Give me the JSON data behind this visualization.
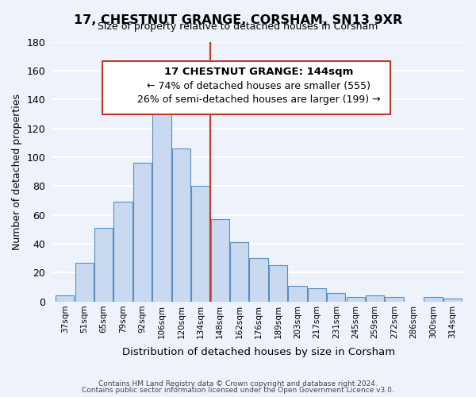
{
  "title": "17, CHESTNUT GRANGE, CORSHAM, SN13 9XR",
  "subtitle": "Size of property relative to detached houses in Corsham",
  "xlabel": "Distribution of detached houses by size in Corsham",
  "ylabel": "Number of detached properties",
  "bar_labels": [
    "37sqm",
    "51sqm",
    "65sqm",
    "79sqm",
    "92sqm",
    "106sqm",
    "120sqm",
    "134sqm",
    "148sqm",
    "162sqm",
    "176sqm",
    "189sqm",
    "203sqm",
    "217sqm",
    "231sqm",
    "245sqm",
    "259sqm",
    "272sqm",
    "286sqm",
    "300sqm",
    "314sqm"
  ],
  "bar_values": [
    4,
    27,
    51,
    69,
    96,
    140,
    106,
    80,
    57,
    41,
    30,
    25,
    11,
    9,
    6,
    3,
    4,
    3,
    0,
    3,
    2
  ],
  "bar_color": "#c8d9f0",
  "bar_edge_color": "#5a8fc3",
  "ylim": [
    0,
    180
  ],
  "yticks": [
    0,
    20,
    40,
    60,
    80,
    100,
    120,
    140,
    160,
    180
  ],
  "vline_x": 7.5,
  "vline_color": "#c0392b",
  "annotation_title": "17 CHESTNUT GRANGE: 144sqm",
  "annotation_line1": "← 74% of detached houses are smaller (555)",
  "annotation_line2": "26% of semi-detached houses are larger (199) →",
  "annotation_box_color": "#ffffff",
  "annotation_box_edge": "#c0392b",
  "footer1": "Contains HM Land Registry data © Crown copyright and database right 2024.",
  "footer2": "Contains public sector information licensed under the Open Government Licence v3.0.",
  "background_color": "#eef3fb",
  "grid_color": "#ffffff"
}
